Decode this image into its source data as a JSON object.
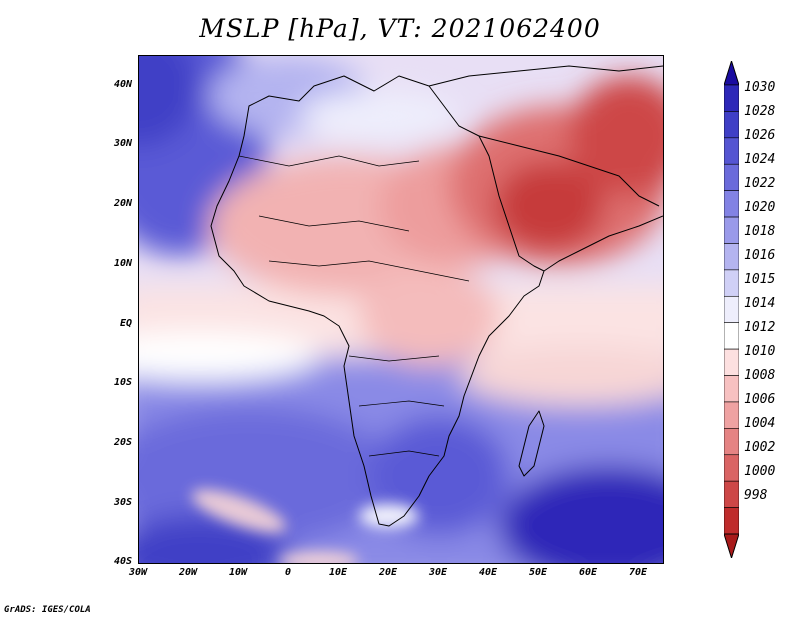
{
  "title": "MSLP [hPa], VT: 2021062400",
  "credit": "GrADS: IGES/COLA",
  "map": {
    "lat_labels": [
      "40N",
      "30N",
      "20N",
      "10N",
      "EQ",
      "10S",
      "20S",
      "30S",
      "40S"
    ],
    "lon_labels": [
      "30W",
      "20W",
      "10W",
      "0",
      "10E",
      "20E",
      "30E",
      "40E",
      "50E",
      "60E",
      "70E"
    ],
    "extent": {
      "lon_min": -30,
      "lon_max": 75,
      "lat_min": -40,
      "lat_max": 45
    }
  },
  "colorbar": {
    "levels": [
      "1030",
      "1028",
      "1026",
      "1024",
      "1022",
      "1020",
      "1018",
      "1016",
      "1015",
      "1014",
      "1012",
      "1010",
      "1008",
      "1006",
      "1004",
      "1002",
      "1000",
      "998"
    ],
    "colors": [
      "#1a0ca0",
      "#2d28b8",
      "#3f3fc6",
      "#5555d2",
      "#6b6bdb",
      "#8282e4",
      "#9a9aea",
      "#b4b4f0",
      "#d0d0f6",
      "#eeeefc",
      "#ffffff",
      "#fde0e0",
      "#f7c1c1",
      "#efa2a2",
      "#e58383",
      "#da6464",
      "#cd4747",
      "#bf2c2c",
      "#a81a1a"
    ]
  }
}
